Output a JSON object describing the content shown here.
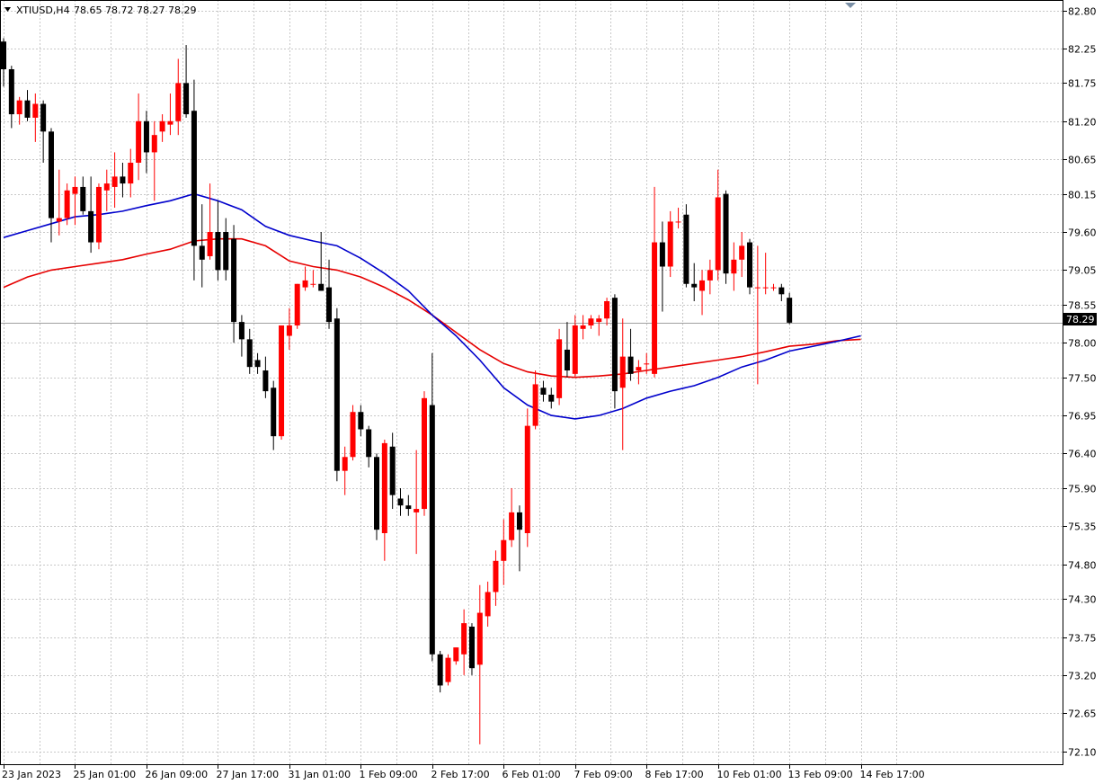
{
  "header": {
    "symbol": "XTIUSD,H4",
    "ohlc": "78.65 78.72 78.27 78.29"
  },
  "current_price_label": "78.29",
  "colors": {
    "bull": "#ff0000",
    "bear": "#000000",
    "ma_fast": "#0000cc",
    "ma_slow": "#e60000",
    "grid": "#c8c8c8",
    "axis": "#000000",
    "price_line": "#a0a0a0",
    "label_bg": "#000000",
    "label_text": "#ffffff"
  },
  "chart_data": {
    "type": "candlestick",
    "grid": true,
    "ylim": [
      71.9,
      82.95
    ],
    "y_ticks": [
      "82.80",
      "82.25",
      "81.75",
      "81.20",
      "80.65",
      "80.15",
      "79.60",
      "79.05",
      "78.55",
      "78.00",
      "77.50",
      "76.95",
      "76.40",
      "75.90",
      "75.35",
      "74.80",
      "74.30",
      "73.75",
      "73.20",
      "72.65",
      "72.10"
    ],
    "x_ticks": [
      {
        "label": "23 Jan 2023",
        "bar": 0
      },
      {
        "label": "25 Jan 01:00",
        "bar": 9
      },
      {
        "label": "26 Jan 09:00",
        "bar": 18
      },
      {
        "label": "27 Jan 17:00",
        "bar": 27
      },
      {
        "label": "31 Jan 01:00",
        "bar": 36
      },
      {
        "label": "1 Feb 09:00",
        "bar": 45
      },
      {
        "label": "2 Feb 17:00",
        "bar": 54
      },
      {
        "label": "6 Feb 01:00",
        "bar": 63
      },
      {
        "label": "7 Feb 09:00",
        "bar": 72
      },
      {
        "label": "8 Feb 17:00",
        "bar": 81
      },
      {
        "label": "10 Feb 01:00",
        "bar": 90
      },
      {
        "label": "13 Feb 09:00",
        "bar": 99
      },
      {
        "label": "14 Feb 17:00",
        "bar": 108
      }
    ],
    "candles": [
      [
        82.35,
        82.4,
        81.7,
        81.95
      ],
      [
        81.95,
        82.0,
        81.1,
        81.3
      ],
      [
        81.3,
        81.55,
        81.15,
        81.5
      ],
      [
        81.5,
        81.65,
        81.2,
        81.25
      ],
      [
        81.25,
        81.6,
        80.9,
        81.45
      ],
      [
        81.45,
        81.5,
        80.6,
        81.05
      ],
      [
        81.05,
        81.1,
        79.45,
        79.8
      ],
      [
        79.75,
        80.5,
        79.55,
        79.8
      ],
      [
        79.8,
        80.3,
        79.7,
        80.2
      ],
      [
        80.15,
        80.4,
        79.7,
        80.25
      ],
      [
        80.25,
        80.4,
        79.85,
        79.9
      ],
      [
        79.9,
        80.4,
        79.3,
        79.45
      ],
      [
        79.45,
        80.3,
        79.35,
        80.25
      ],
      [
        80.2,
        80.5,
        79.9,
        80.3
      ],
      [
        80.25,
        80.75,
        79.95,
        80.4
      ],
      [
        80.4,
        80.6,
        80.1,
        80.3
      ],
      [
        80.3,
        80.8,
        80.1,
        80.6
      ],
      [
        80.6,
        81.6,
        80.35,
        81.2
      ],
      [
        81.2,
        81.35,
        80.45,
        80.75
      ],
      [
        80.75,
        81.2,
        80.05,
        81.0
      ],
      [
        81.05,
        81.3,
        80.9,
        81.2
      ],
      [
        81.15,
        81.6,
        81.0,
        81.2
      ],
      [
        81.2,
        82.1,
        81.0,
        81.75
      ],
      [
        81.75,
        82.3,
        81.25,
        81.3
      ],
      [
        81.35,
        81.8,
        78.9,
        79.4
      ],
      [
        79.4,
        80.0,
        78.8,
        79.2
      ],
      [
        79.25,
        80.3,
        79.2,
        79.6
      ],
      [
        79.6,
        80.05,
        78.9,
        79.05
      ],
      [
        79.6,
        79.8,
        78.9,
        79.05
      ],
      [
        79.5,
        79.7,
        78.0,
        78.3
      ],
      [
        78.3,
        78.4,
        77.8,
        78.05
      ],
      [
        78.05,
        78.2,
        77.55,
        77.65
      ],
      [
        77.75,
        77.85,
        77.55,
        77.65
      ],
      [
        77.6,
        77.8,
        77.2,
        77.3
      ],
      [
        77.35,
        77.45,
        76.45,
        76.65
      ],
      [
        76.65,
        78.25,
        76.6,
        78.25
      ],
      [
        78.1,
        78.5,
        77.9,
        78.25
      ],
      [
        78.25,
        78.85,
        78.2,
        78.85
      ],
      [
        78.8,
        79.1,
        78.75,
        78.9
      ],
      [
        78.85,
        79.05,
        78.8,
        78.85
      ],
      [
        78.85,
        79.6,
        78.75,
        78.75
      ],
      [
        78.8,
        79.2,
        78.2,
        78.3
      ],
      [
        78.35,
        78.5,
        76.0,
        76.15
      ],
      [
        76.15,
        76.5,
        75.8,
        76.35
      ],
      [
        76.35,
        77.1,
        76.3,
        77.0
      ],
      [
        77.0,
        77.1,
        76.65,
        76.75
      ],
      [
        76.75,
        76.8,
        76.2,
        76.35
      ],
      [
        76.35,
        76.4,
        75.15,
        75.3
      ],
      [
        75.25,
        76.6,
        74.85,
        76.55
      ],
      [
        76.5,
        76.7,
        75.6,
        75.8
      ],
      [
        75.75,
        75.9,
        75.5,
        75.65
      ],
      [
        75.65,
        75.8,
        75.5,
        75.6
      ],
      [
        75.55,
        76.45,
        74.95,
        75.6
      ],
      [
        75.6,
        77.3,
        75.5,
        77.2
      ],
      [
        77.1,
        77.85,
        73.4,
        73.5
      ],
      [
        73.5,
        73.55,
        72.95,
        73.05
      ],
      [
        73.1,
        73.5,
        73.05,
        73.45
      ],
      [
        73.4,
        73.6,
        73.35,
        73.6
      ],
      [
        73.5,
        74.15,
        73.2,
        73.95
      ],
      [
        73.9,
        73.95,
        73.2,
        73.3
      ],
      [
        73.35,
        74.5,
        72.2,
        74.1
      ],
      [
        74.05,
        74.55,
        73.9,
        74.4
      ],
      [
        74.4,
        75.0,
        74.2,
        74.85
      ],
      [
        74.85,
        75.45,
        74.5,
        75.15
      ],
      [
        75.15,
        75.9,
        75.05,
        75.55
      ],
      [
        75.55,
        75.65,
        74.7,
        75.3
      ],
      [
        75.25,
        77.05,
        75.05,
        76.8
      ],
      [
        76.8,
        77.6,
        76.75,
        77.4
      ],
      [
        77.35,
        77.45,
        77.15,
        77.25
      ],
      [
        77.25,
        77.35,
        77.05,
        77.15
      ],
      [
        77.2,
        78.2,
        77.1,
        78.05
      ],
      [
        77.9,
        78.3,
        77.5,
        77.6
      ],
      [
        77.55,
        78.4,
        77.5,
        78.25
      ],
      [
        78.2,
        78.4,
        78.05,
        78.25
      ],
      [
        78.25,
        78.4,
        78.2,
        78.35
      ],
      [
        78.3,
        78.4,
        78.1,
        78.35
      ],
      [
        78.35,
        78.65,
        78.25,
        78.6
      ],
      [
        78.65,
        78.7,
        77.05,
        77.3
      ],
      [
        77.35,
        78.35,
        76.45,
        77.8
      ],
      [
        77.8,
        78.2,
        77.45,
        77.55
      ],
      [
        77.6,
        77.75,
        77.4,
        77.65
      ],
      [
        77.7,
        77.85,
        77.55,
        77.7
      ],
      [
        77.55,
        80.25,
        77.5,
        79.45
      ],
      [
        79.45,
        79.75,
        78.45,
        79.1
      ],
      [
        79.1,
        79.9,
        78.95,
        79.75
      ],
      [
        79.75,
        79.95,
        79.65,
        79.75
      ],
      [
        79.85,
        80.0,
        78.8,
        78.85
      ],
      [
        78.85,
        79.15,
        78.6,
        78.8
      ],
      [
        78.75,
        79.05,
        78.4,
        78.9
      ],
      [
        78.9,
        79.2,
        78.7,
        79.05
      ],
      [
        79.05,
        80.5,
        78.9,
        80.1
      ],
      [
        80.15,
        80.2,
        78.85,
        79.0
      ],
      [
        79.0,
        79.45,
        78.75,
        79.2
      ],
      [
        79.2,
        79.6,
        78.95,
        79.4
      ],
      [
        79.45,
        79.5,
        78.7,
        78.8
      ],
      [
        78.8,
        79.4,
        77.4,
        78.8
      ],
      [
        78.8,
        79.3,
        78.7,
        78.8
      ],
      [
        78.8,
        78.85,
        78.75,
        78.8
      ],
      [
        78.8,
        78.85,
        78.6,
        78.7
      ],
      [
        78.65,
        78.72,
        78.27,
        78.29
      ]
    ],
    "ma_fast": [
      [
        0,
        79.52
      ],
      [
        3,
        79.62
      ],
      [
        6,
        79.72
      ],
      [
        9,
        79.82
      ],
      [
        12,
        79.85
      ],
      [
        15,
        79.9
      ],
      [
        18,
        79.98
      ],
      [
        21,
        80.05
      ],
      [
        24,
        80.15
      ],
      [
        27,
        80.05
      ],
      [
        30,
        79.92
      ],
      [
        33,
        79.68
      ],
      [
        36,
        79.55
      ],
      [
        39,
        79.47
      ],
      [
        42,
        79.4
      ],
      [
        45,
        79.22
      ],
      [
        48,
        79.0
      ],
      [
        51,
        78.75
      ],
      [
        54,
        78.4
      ],
      [
        57,
        78.1
      ],
      [
        60,
        77.75
      ],
      [
        63,
        77.35
      ],
      [
        66,
        77.1
      ],
      [
        69,
        76.95
      ],
      [
        72,
        76.9
      ],
      [
        75,
        76.95
      ],
      [
        78,
        77.05
      ],
      [
        81,
        77.2
      ],
      [
        84,
        77.3
      ],
      [
        87,
        77.38
      ],
      [
        90,
        77.5
      ],
      [
        93,
        77.65
      ],
      [
        96,
        77.75
      ],
      [
        99,
        77.88
      ],
      [
        102,
        77.95
      ],
      [
        105,
        78.02
      ],
      [
        108,
        78.1
      ]
    ],
    "ma_slow": [
      [
        0,
        78.8
      ],
      [
        3,
        78.95
      ],
      [
        6,
        79.05
      ],
      [
        9,
        79.1
      ],
      [
        12,
        79.15
      ],
      [
        15,
        79.2
      ],
      [
        18,
        79.28
      ],
      [
        21,
        79.35
      ],
      [
        24,
        79.47
      ],
      [
        27,
        79.5
      ],
      [
        30,
        79.5
      ],
      [
        33,
        79.4
      ],
      [
        36,
        79.18
      ],
      [
        39,
        79.1
      ],
      [
        42,
        79.05
      ],
      [
        45,
        78.95
      ],
      [
        48,
        78.8
      ],
      [
        51,
        78.62
      ],
      [
        54,
        78.4
      ],
      [
        57,
        78.15
      ],
      [
        60,
        77.9
      ],
      [
        63,
        77.7
      ],
      [
        66,
        77.58
      ],
      [
        69,
        77.52
      ],
      [
        72,
        77.5
      ],
      [
        75,
        77.52
      ],
      [
        78,
        77.55
      ],
      [
        81,
        77.6
      ],
      [
        84,
        77.65
      ],
      [
        87,
        77.7
      ],
      [
        90,
        77.75
      ],
      [
        93,
        77.8
      ],
      [
        96,
        77.87
      ],
      [
        99,
        77.95
      ],
      [
        102,
        77.98
      ],
      [
        105,
        78.03
      ],
      [
        108,
        78.05
      ]
    ]
  }
}
